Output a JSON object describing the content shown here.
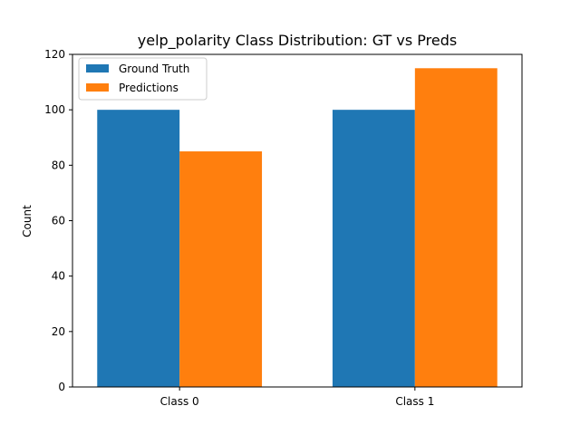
{
  "chart_data": {
    "type": "bar",
    "title": "yelp_polarity Class Distribution: GT vs Preds",
    "xlabel": "",
    "ylabel": "Count",
    "categories": [
      "Class 0",
      "Class 1"
    ],
    "series": [
      {
        "name": "Ground Truth",
        "values": [
          100,
          100
        ],
        "color": "#1f77b4"
      },
      {
        "name": "Predictions",
        "values": [
          85,
          115
        ],
        "color": "#ff7f0e"
      }
    ],
    "ylim": [
      0,
      120
    ],
    "yticks": [
      0,
      20,
      40,
      60,
      80,
      100,
      120
    ],
    "grid": false,
    "legend_position": "top-left"
  }
}
